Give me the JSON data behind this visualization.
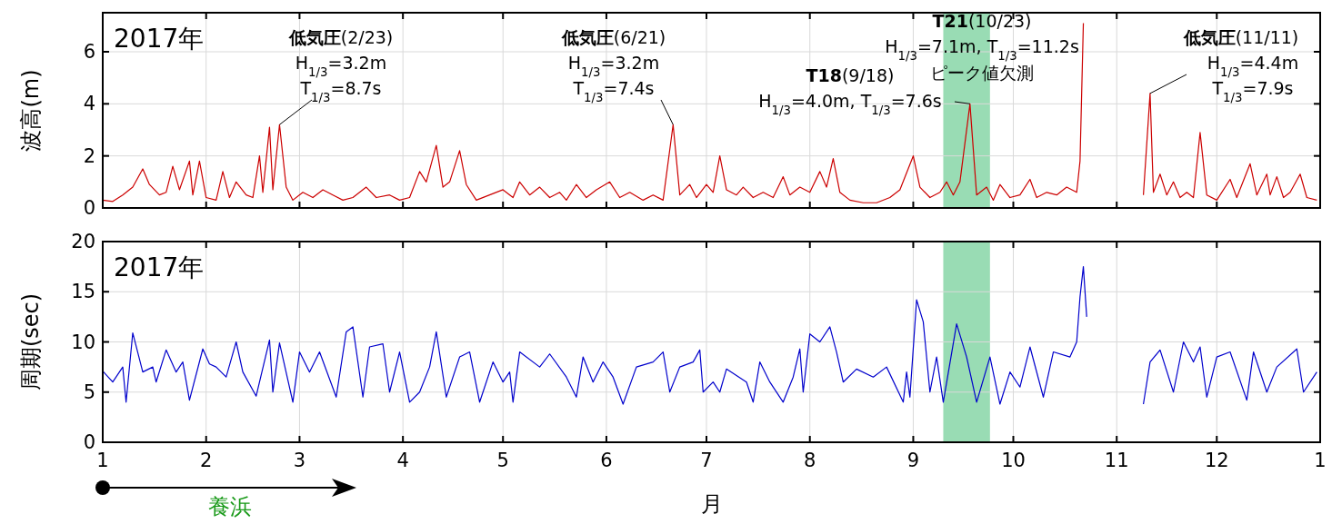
{
  "chart_data": [
    {
      "type": "line",
      "title": "2017年",
      "ylabel": "波高(m)",
      "xlim": [
        "2017-01-01",
        "2018-01-01"
      ],
      "xticks": [
        {
          "value": "2017-01-01",
          "label": null
        },
        {
          "value": "2017-02-01",
          "label": null
        },
        {
          "value": "2017-03-01",
          "label": null
        },
        {
          "value": "2017-04-01",
          "label": null
        },
        {
          "value": "2017-05-01",
          "label": null
        },
        {
          "value": "2017-06-01",
          "label": null
        },
        {
          "value": "2017-07-01",
          "label": null
        },
        {
          "value": "2017-08-01",
          "label": null
        },
        {
          "value": "2017-09-01",
          "label": null
        },
        {
          "value": "2017-10-01",
          "label": null
        },
        {
          "value": "2017-11-01",
          "label": null
        },
        {
          "value": "2017-12-01",
          "label": null
        },
        {
          "value": "2018-01-01",
          "label": null
        }
      ],
      "ylim": [
        0,
        7.5
      ],
      "yticks": [
        0,
        2,
        4,
        6
      ],
      "grid": true,
      "tick_labels": "y",
      "bands": [
        {
          "axis": "x",
          "from": "2017-09-10",
          "to": "2017-09-24",
          "color": "#99dcb4"
        }
      ],
      "annotations": [
        "低気圧(2/23)",
        "H$_{1/3}$=3.2m",
        {
          "text": "T$_{1/3}$=8.7s",
          "x": "2017-02-23",
          "y": 3.2
        },
        "低気圧(6/21)",
        "H$_{1/3}$=3.2m",
        {
          "text": "T$_{1/3}$=7.4s",
          "x": "2017-06-21",
          "y": 3.2
        },
        "T18(9/18)",
        {
          "text": "H$_{1/3}$=4.0m, T$_{1/3}$=7.6s",
          "x": "2017-09-18",
          "y": 4.0
        },
        "T21(10/23)",
        "H$_{1/3}$=7.1m, T$_{1/3}$=11.2s",
        "ピーク値欠測",
        "低気圧(11/11)",
        {
          "text": "H$_{1/3}$=4.4m",
          "x": "2017-11-11",
          "y": 4.4
        },
        "T$_{1/3}$=7.9s"
      ],
      "series": [
        {
          "color": "#cc0000",
          "x": [
            "2017-01-01",
            "2017-01-04",
            "2017-01-07",
            "2017-01-10",
            "2017-01-13",
            "2017-01-15",
            "2017-01-18",
            "2017-01-20",
            "2017-01-22",
            "2017-01-24",
            "2017-01-27",
            "2017-01-28",
            "2017-01-30",
            "2017-02-01",
            "2017-02-04",
            "2017-02-06",
            "2017-02-08",
            "2017-02-10",
            "2017-02-13",
            "2017-02-15",
            "2017-02-17",
            "2017-02-18",
            "2017-02-20",
            "2017-02-21",
            "2017-02-23",
            "2017-02-25",
            "2017-02-27",
            "2017-03-02",
            "2017-03-05",
            "2017-03-08",
            "2017-03-11",
            "2017-03-14",
            "2017-03-17",
            "2017-03-21",
            "2017-03-24",
            "2017-03-28",
            "2017-03-31",
            "2017-04-03",
            "2017-04-06",
            "2017-04-08",
            "2017-04-11",
            "2017-04-13",
            "2017-04-15",
            "2017-04-18",
            "2017-04-20",
            "2017-04-23",
            "2017-04-27",
            "2017-05-01",
            "2017-05-04",
            "2017-05-06",
            "2017-05-09",
            "2017-05-12",
            "2017-05-15",
            "2017-05-18",
            "2017-05-20",
            "2017-05-23",
            "2017-05-26",
            "2017-05-29",
            "2017-06-02",
            "2017-06-05",
            "2017-06-08",
            "2017-06-12",
            "2017-06-15",
            "2017-06-18",
            "2017-06-21",
            "2017-06-23",
            "2017-06-26",
            "2017-06-28",
            "2017-07-01",
            "2017-07-03",
            "2017-07-05",
            "2017-07-07",
            "2017-07-10",
            "2017-07-12",
            "2017-07-15",
            "2017-07-18",
            "2017-07-21",
            "2017-07-24",
            "2017-07-26",
            "2017-07-29",
            "2017-08-01",
            "2017-08-04",
            "2017-08-06",
            "2017-08-08",
            "2017-08-10",
            "2017-08-13",
            "2017-08-17",
            "2017-08-21",
            "2017-08-25",
            "2017-08-28",
            "2017-09-01",
            "2017-09-03",
            "2017-09-06",
            "2017-09-09",
            "2017-09-11",
            "2017-09-13",
            "2017-09-15",
            "2017-09-18",
            "2017-09-20",
            "2017-09-23",
            "2017-09-25",
            "2017-09-27",
            "2017-09-30",
            "2017-10-03",
            "2017-10-06",
            "2017-10-08",
            "2017-10-11",
            "2017-10-14",
            "2017-10-17",
            "2017-10-20",
            "2017-10-21",
            "2017-10-22",
            "2017-10-23",
            "2017-11-09",
            "2017-11-11",
            "2017-11-12",
            "2017-11-14",
            "2017-11-16",
            "2017-11-18",
            "2017-11-20",
            "2017-11-22",
            "2017-11-24",
            "2017-11-26",
            "2017-11-28",
            "2017-12-01",
            "2017-12-05",
            "2017-12-07",
            "2017-12-11",
            "2017-12-13",
            "2017-12-16",
            "2017-12-17",
            "2017-12-19",
            "2017-12-21",
            "2017-12-23",
            "2017-12-26",
            "2017-12-28",
            "2017-12-31"
          ],
          "values": [
            0.3,
            0.25,
            0.5,
            0.8,
            1.5,
            0.9,
            0.5,
            0.6,
            1.6,
            0.7,
            1.8,
            0.5,
            1.8,
            0.4,
            0.3,
            1.4,
            0.4,
            1.0,
            0.5,
            0.4,
            2.0,
            0.6,
            3.1,
            0.7,
            3.2,
            0.8,
            0.3,
            0.6,
            0.4,
            0.7,
            0.5,
            0.3,
            0.4,
            0.8,
            0.4,
            0.5,
            0.3,
            0.4,
            1.4,
            1.0,
            2.4,
            0.8,
            1.0,
            2.2,
            0.9,
            0.3,
            0.5,
            0.7,
            0.4,
            1.0,
            0.5,
            0.8,
            0.4,
            0.6,
            0.3,
            0.9,
            0.4,
            0.7,
            1.0,
            0.4,
            0.6,
            0.3,
            0.5,
            0.3,
            3.2,
            0.5,
            0.9,
            0.4,
            0.9,
            0.6,
            2.0,
            0.7,
            0.5,
            0.8,
            0.4,
            0.6,
            0.4,
            1.2,
            0.5,
            0.8,
            0.6,
            1.4,
            0.8,
            1.9,
            0.6,
            0.3,
            0.2,
            0.2,
            0.4,
            0.7,
            2.0,
            0.8,
            0.4,
            0.6,
            1.0,
            0.5,
            1.0,
            4.0,
            0.5,
            0.8,
            0.3,
            0.9,
            0.4,
            0.5,
            1.1,
            0.4,
            0.6,
            0.5,
            0.8,
            0.6,
            1.8,
            7.1,
            null,
            0.5,
            4.4,
            0.6,
            1.3,
            0.5,
            1.0,
            0.4,
            0.6,
            0.4,
            2.9,
            0.5,
            0.3,
            1.1,
            0.4,
            1.7,
            0.5,
            1.3,
            0.5,
            1.2,
            0.4,
            0.6,
            1.3,
            0.4,
            0.3
          ]
        }
      ]
    },
    {
      "type": "line",
      "title": "2017年",
      "ylabel": "周期(sec)",
      "xlabel": "月",
      "xlim": [
        "2017-01-01",
        "2018-01-01"
      ],
      "xticks": [
        {
          "value": "2017-01-01",
          "label": "1"
        },
        {
          "value": "2017-02-01",
          "label": "2"
        },
        {
          "value": "2017-03-01",
          "label": "3"
        },
        {
          "value": "2017-04-01",
          "label": "4"
        },
        {
          "value": "2017-05-01",
          "label": "5"
        },
        {
          "value": "2017-06-01",
          "label": "6"
        },
        {
          "value": "2017-07-01",
          "label": "7"
        },
        {
          "value": "2017-08-01",
          "label": "8"
        },
        {
          "value": "2017-09-01",
          "label": "9"
        },
        {
          "value": "2017-10-01",
          "label": "10"
        },
        {
          "value": "2017-11-01",
          "label": "11"
        },
        {
          "value": "2017-12-01",
          "label": "12"
        },
        {
          "value": "2018-01-01",
          "label": "1"
        }
      ],
      "ylim": [
        0,
        20
      ],
      "yticks": [
        0,
        5,
        10,
        15,
        20
      ],
      "grid": true,
      "bands": [
        {
          "axis": "x",
          "from": "2017-09-10",
          "to": "2017-09-24",
          "color": "#99dcb4"
        }
      ],
      "annotations": [
        "養浜"
      ],
      "series": [
        {
          "color": "#0000cc",
          "x": [
            "2017-01-01",
            "2017-01-04",
            "2017-01-07",
            "2017-01-08",
            "2017-01-10",
            "2017-01-13",
            "2017-01-16",
            "2017-01-17",
            "2017-01-20",
            "2017-01-23",
            "2017-01-25",
            "2017-01-27",
            "2017-01-31",
            "2017-02-02",
            "2017-02-04",
            "2017-02-07",
            "2017-02-10",
            "2017-02-12",
            "2017-02-16",
            "2017-02-20",
            "2017-02-21",
            "2017-02-23",
            "2017-02-27",
            "2017-03-01",
            "2017-03-04",
            "2017-03-07",
            "2017-03-12",
            "2017-03-15",
            "2017-03-17",
            "2017-03-20",
            "2017-03-22",
            "2017-03-26",
            "2017-03-28",
            "2017-03-31",
            "2017-04-03",
            "2017-04-06",
            "2017-04-09",
            "2017-04-11",
            "2017-04-14",
            "2017-04-18",
            "2017-04-21",
            "2017-04-24",
            "2017-04-28",
            "2017-05-01",
            "2017-05-03",
            "2017-05-04",
            "2017-05-06",
            "2017-05-12",
            "2017-05-15",
            "2017-05-20",
            "2017-05-23",
            "2017-05-25",
            "2017-05-28",
            "2017-05-31",
            "2017-06-03",
            "2017-06-06",
            "2017-06-10",
            "2017-06-15",
            "2017-06-18",
            "2017-06-20",
            "2017-06-23",
            "2017-06-27",
            "2017-06-29",
            "2017-06-30",
            "2017-07-03",
            "2017-07-05",
            "2017-07-07",
            "2017-07-13",
            "2017-07-15",
            "2017-07-17",
            "2017-07-20",
            "2017-07-24",
            "2017-07-27",
            "2017-07-29",
            "2017-07-30",
            "2017-08-01",
            "2017-08-04",
            "2017-08-07",
            "2017-08-09",
            "2017-08-11",
            "2017-08-15",
            "2017-08-20",
            "2017-08-24",
            "2017-08-29",
            "2017-08-30",
            "2017-08-31",
            "2017-09-02",
            "2017-09-04",
            "2017-09-06",
            "2017-09-08",
            "2017-09-10",
            "2017-09-14",
            "2017-09-17",
            "2017-09-20",
            "2017-09-24",
            "2017-09-27",
            "2017-09-30",
            "2017-10-03",
            "2017-10-06",
            "2017-10-10",
            "2017-10-13",
            "2017-10-18",
            "2017-10-20",
            "2017-10-21",
            "2017-10-22",
            "2017-10-23",
            "2017-10-24",
            "2017-11-09",
            "2017-11-11",
            "2017-11-14",
            "2017-11-18",
            "2017-11-21",
            "2017-11-24",
            "2017-11-26",
            "2017-11-28",
            "2017-12-01",
            "2017-12-05",
            "2017-12-10",
            "2017-12-12",
            "2017-12-16",
            "2017-12-19",
            "2017-12-25",
            "2017-12-27",
            "2017-12-31"
          ],
          "values": [
            7.1,
            6.0,
            7.5,
            4.0,
            10.9,
            7.0,
            7.5,
            6.0,
            9.2,
            7.0,
            8.0,
            4.2,
            9.3,
            7.8,
            7.5,
            6.5,
            10.0,
            7.0,
            4.6,
            10.2,
            5.0,
            9.9,
            4.0,
            9.0,
            7.0,
            9.0,
            4.5,
            11.0,
            11.5,
            4.5,
            9.5,
            9.8,
            5.0,
            9.0,
            4.0,
            5.0,
            7.5,
            11.0,
            4.5,
            8.5,
            9.0,
            4.0,
            8.0,
            6.0,
            7.0,
            4.0,
            9.0,
            7.5,
            8.8,
            6.5,
            4.5,
            8.5,
            6.0,
            8.0,
            6.5,
            3.8,
            7.5,
            8.0,
            9.0,
            5.0,
            7.5,
            8.0,
            9.2,
            5.0,
            6.0,
            5.0,
            7.3,
            6.0,
            4.0,
            8.0,
            6.0,
            4.0,
            6.5,
            9.3,
            5.0,
            10.8,
            10.0,
            11.5,
            9.0,
            6.0,
            7.3,
            6.5,
            7.5,
            4.0,
            7.0,
            4.5,
            14.2,
            12.0,
            5.0,
            8.5,
            4.0,
            11.8,
            8.5,
            4.0,
            8.5,
            3.8,
            7.0,
            5.5,
            9.5,
            4.5,
            9.0,
            8.5,
            10.0,
            14.5,
            17.5,
            12.5,
            null,
            3.8,
            8.0,
            9.2,
            5.0,
            10.0,
            8.0,
            9.5,
            4.5,
            8.5,
            9.0,
            4.2,
            9.0,
            5.0,
            7.5,
            9.3,
            5.0,
            7.0
          ]
        }
      ]
    }
  ]
}
